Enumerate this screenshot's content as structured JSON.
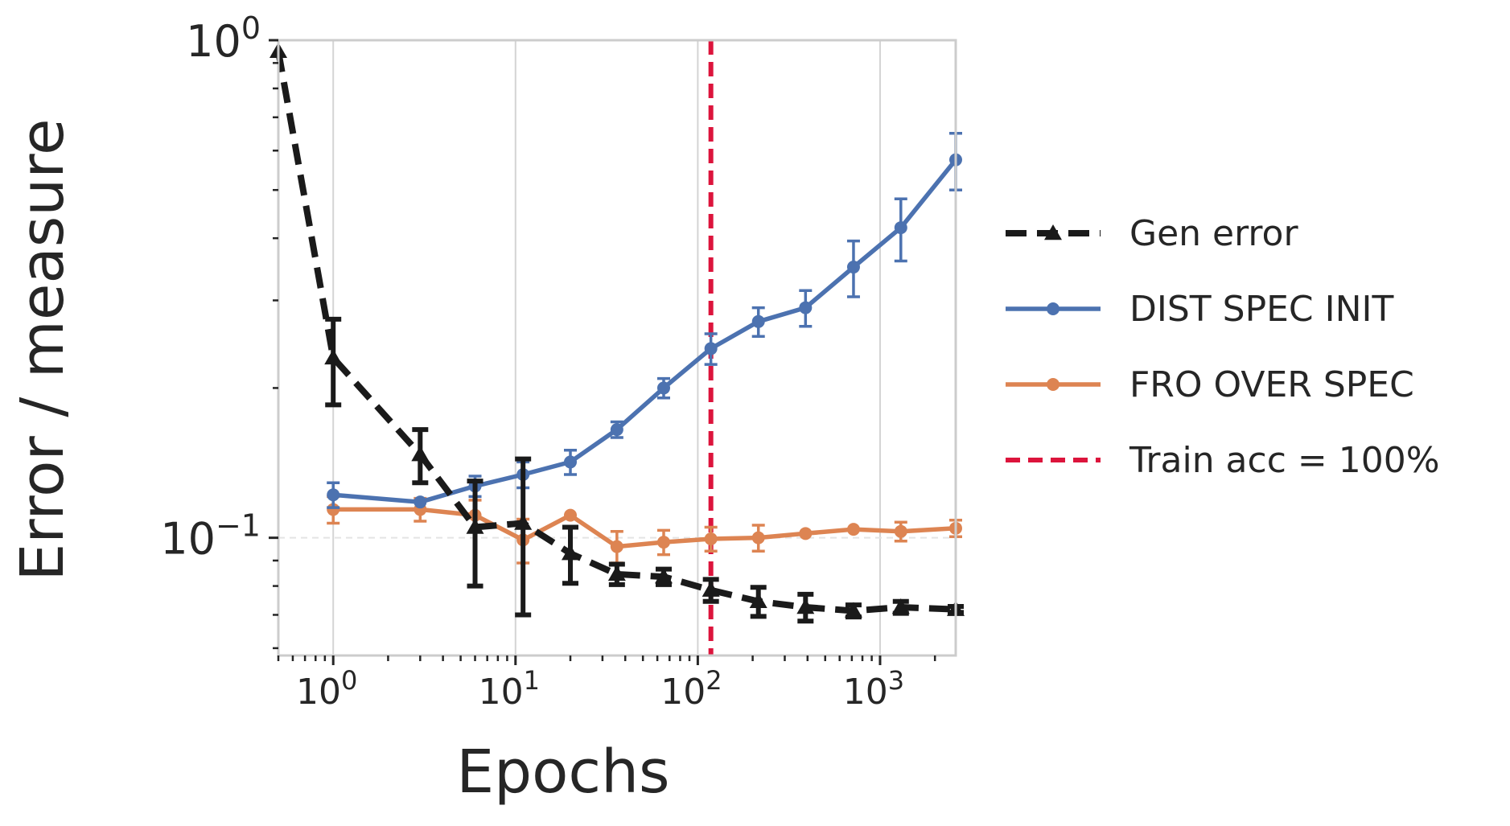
{
  "chart_data": {
    "type": "line",
    "title": "",
    "xlabel": "Epochs",
    "ylabel": "Error / measure",
    "xscale": "log",
    "yscale": "log",
    "xlim": [
      0.5,
      2600
    ],
    "ylim": [
      0.058,
      1.0
    ],
    "grid": "vertical",
    "legend_position": "right",
    "x_ticks": [
      {
        "value": 1,
        "base": "10",
        "exp": "0"
      },
      {
        "value": 10,
        "base": "10",
        "exp": "1"
      },
      {
        "value": 100,
        "base": "10",
        "exp": "2"
      },
      {
        "value": 1000,
        "base": "10",
        "exp": "3"
      }
    ],
    "y_ticks": [
      {
        "value": 1.0,
        "base": "10",
        "exp": "0"
      },
      {
        "value": 0.1,
        "base": "10",
        "exp": "−1"
      }
    ],
    "series": [
      {
        "name": "Gen error",
        "style": "dashed",
        "marker": "triangle",
        "color": "#1a1a1a",
        "x": [
          0.5,
          1,
          3,
          6,
          11,
          20,
          36,
          65,
          118,
          215,
          390,
          715,
          1300,
          2600
        ],
        "y": [
          0.95,
          0.23,
          0.147,
          0.105,
          0.107,
          0.093,
          0.0845,
          0.0835,
          0.0785,
          0.0745,
          0.0725,
          0.0713,
          0.0725,
          0.0718
        ],
        "err": [
          0.0,
          0.045,
          0.018,
          0.025,
          0.037,
          0.012,
          0.004,
          0.003,
          0.004,
          0.005,
          0.0045,
          0.002,
          0.002,
          0.001
        ]
      },
      {
        "name": "DIST SPEC INIT",
        "style": "solid",
        "marker": "circle",
        "color": "#4c72b0",
        "x": [
          1,
          3,
          6,
          11,
          20,
          36,
          65,
          118,
          215,
          390,
          715,
          1300,
          2600
        ],
        "y": [
          0.122,
          0.118,
          0.127,
          0.134,
          0.142,
          0.165,
          0.2,
          0.24,
          0.272,
          0.29,
          0.35,
          0.42,
          0.575
        ],
        "err": [
          0.007,
          0.0,
          0.006,
          0.008,
          0.008,
          0.006,
          0.009,
          0.017,
          0.018,
          0.024,
          0.045,
          0.06,
          0.075
        ]
      },
      {
        "name": "FRO OVER SPEC",
        "style": "solid",
        "marker": "circle",
        "color": "#dd8452",
        "x": [
          1,
          3,
          6,
          11,
          20,
          36,
          65,
          118,
          215,
          390,
          715,
          1300,
          2600
        ],
        "y": [
          0.114,
          0.114,
          0.111,
          0.099,
          0.111,
          0.096,
          0.098,
          0.0995,
          0.1,
          0.102,
          0.104,
          0.103,
          0.1045
        ],
        "err": [
          0.007,
          0.006,
          0.008,
          0.01,
          0.0,
          0.007,
          0.0055,
          0.0055,
          0.006,
          0.0,
          0.0,
          0.0045,
          0.004
        ]
      },
      {
        "name": "Train acc = 100%",
        "type": "vline",
        "style": "dashed",
        "color": "#dc143c",
        "x_value": 118
      }
    ]
  }
}
